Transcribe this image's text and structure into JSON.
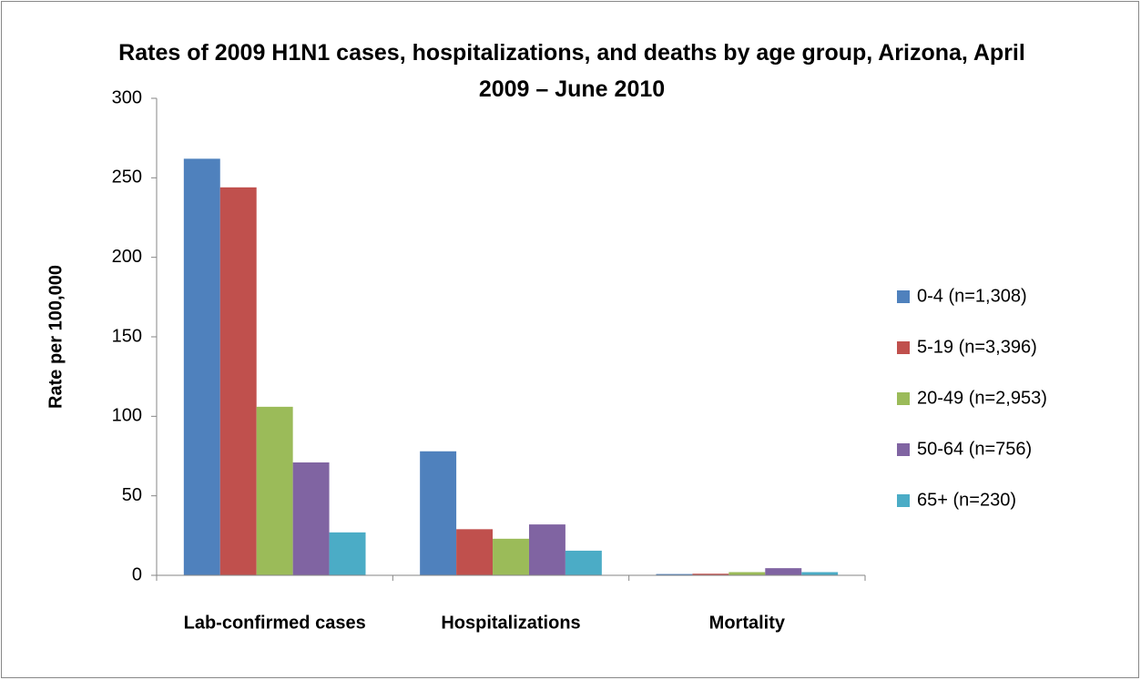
{
  "chart_data": {
    "type": "bar",
    "title": "Rates of 2009 H1N1 cases, hospitalizations, and deaths by age group, Arizona, April 2009 – June 2010",
    "y_label": "Rate per 100,000",
    "categories": [
      "Lab-confirmed cases",
      "Hospitalizations",
      "Mortality"
    ],
    "series": [
      {
        "name": "0-4 (n=1,308)",
        "color": "#4f81bd",
        "values": [
          262,
          78,
          0.8
        ]
      },
      {
        "name": "5-19 (n=3,396)",
        "color": "#c0504d",
        "values": [
          244,
          29,
          1
        ]
      },
      {
        "name": "20-49 (n=2,953)",
        "color": "#9bbb59",
        "values": [
          106,
          23,
          2
        ]
      },
      {
        "name": "50-64 (n=756)",
        "color": "#8064a2",
        "values": [
          71,
          32,
          4.5
        ]
      },
      {
        "name": "65+ (n=230)",
        "color": "#4bacc6",
        "values": [
          27,
          15.5,
          2
        ]
      }
    ],
    "ylim": [
      0,
      300
    ],
    "yticks": [
      0,
      50,
      100,
      150,
      200,
      250,
      300
    ],
    "grid": false,
    "legend": "right"
  }
}
